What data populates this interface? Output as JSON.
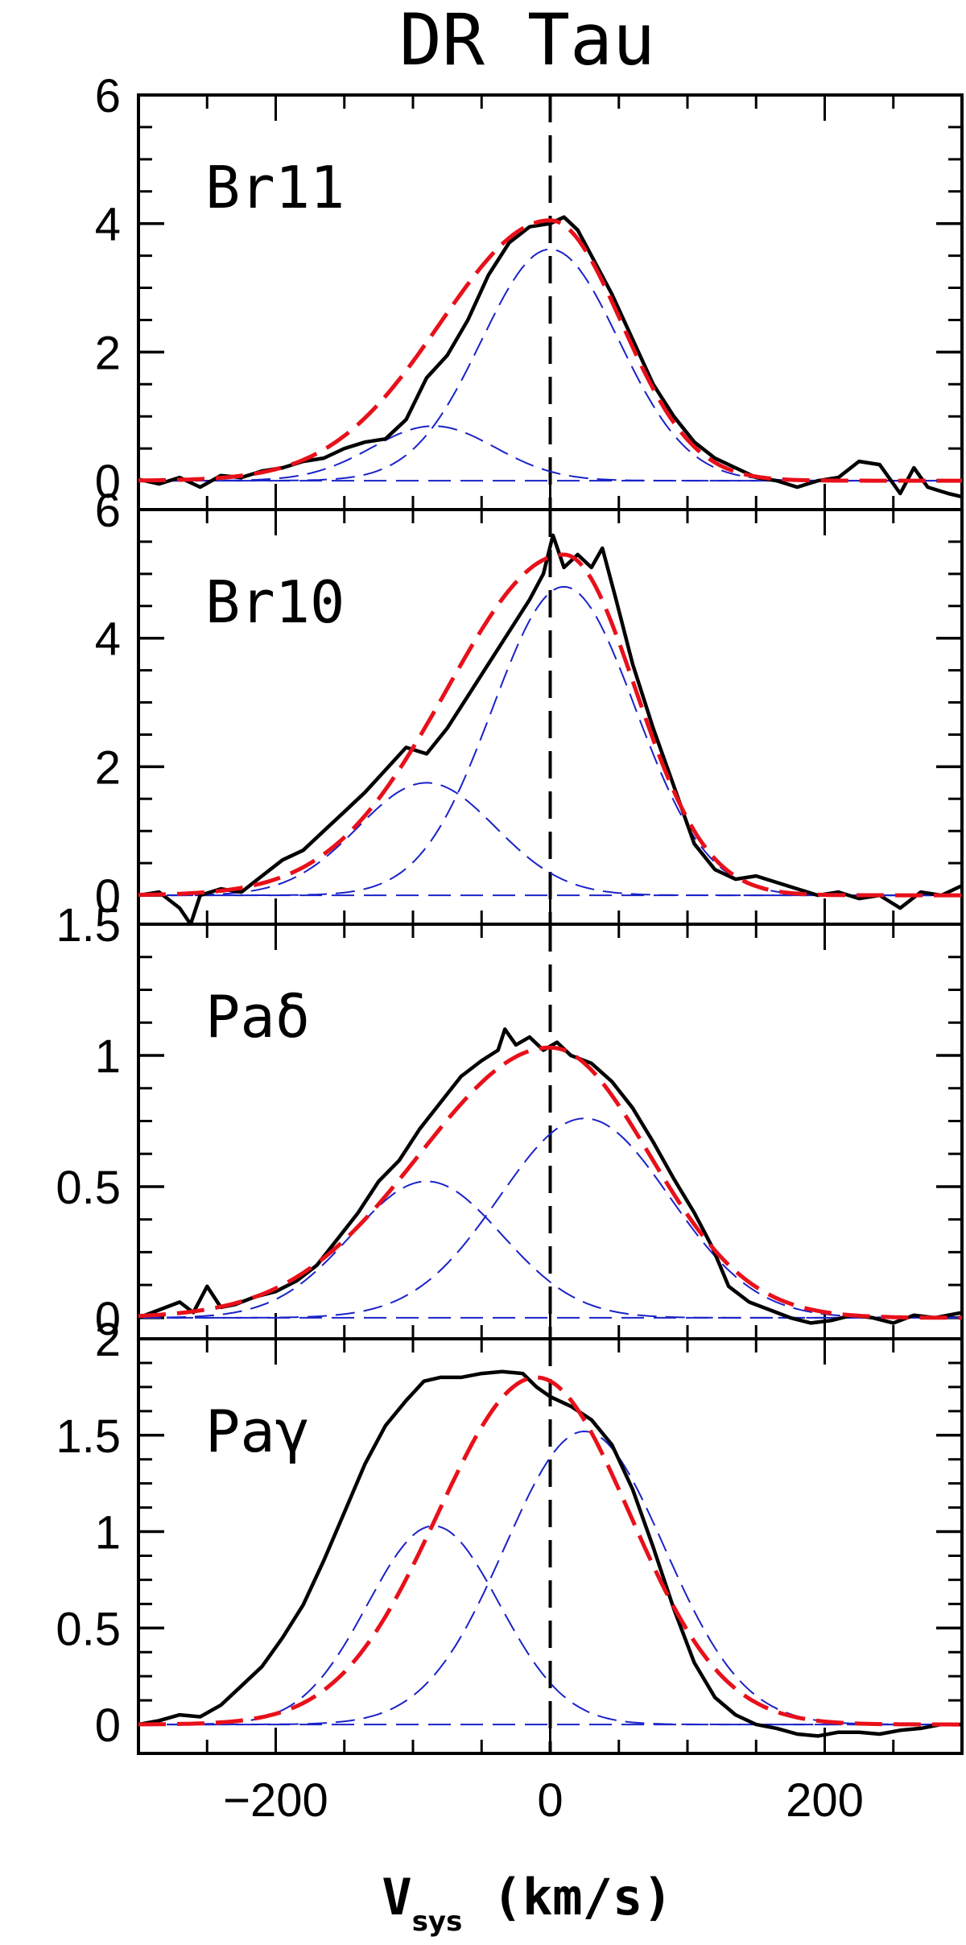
{
  "chart_data": {
    "type": "line",
    "title": "DR Tau",
    "xlabel": "V",
    "xlabel_sub": "sys",
    "xlabel_unit": " (km/s)",
    "xlim": [
      -300,
      300
    ],
    "x_ticks": [
      -200,
      0,
      200
    ],
    "x_tick_labels": [
      "−200",
      "0",
      "200"
    ],
    "vline_x": 0,
    "colors": {
      "observed": "#000000",
      "total_fit": "#e8101a",
      "components": "#1a22c8"
    },
    "panels": [
      {
        "label": "Br11",
        "ylim": [
          -0.45,
          6
        ],
        "y_ticks": [
          0,
          2,
          4,
          6
        ],
        "y_tick_labels": [
          "0",
          "2",
          "4",
          "6"
        ],
        "components": [
          {
            "center": -85,
            "amplitude": 0.85,
            "sigma": 45
          },
          {
            "center": 0,
            "amplitude": 3.6,
            "sigma": 50
          }
        ],
        "total_amplitude": 4.05,
        "total_center": 0,
        "total_sigma_left": 80,
        "total_sigma_right": 52,
        "observed": [
          [
            -300,
            0.02
          ],
          [
            -285,
            -0.05
          ],
          [
            -270,
            0.05
          ],
          [
            -255,
            -0.1
          ],
          [
            -240,
            0.08
          ],
          [
            -225,
            0.05
          ],
          [
            -210,
            0.15
          ],
          [
            -195,
            0.2
          ],
          [
            -180,
            0.3
          ],
          [
            -165,
            0.35
          ],
          [
            -150,
            0.5
          ],
          [
            -135,
            0.6
          ],
          [
            -120,
            0.65
          ],
          [
            -105,
            0.95
          ],
          [
            -90,
            1.6
          ],
          [
            -75,
            1.95
          ],
          [
            -60,
            2.5
          ],
          [
            -45,
            3.2
          ],
          [
            -30,
            3.7
          ],
          [
            -15,
            3.95
          ],
          [
            0,
            4.0
          ],
          [
            10,
            4.1
          ],
          [
            20,
            3.9
          ],
          [
            30,
            3.5
          ],
          [
            45,
            2.9
          ],
          [
            60,
            2.2
          ],
          [
            75,
            1.5
          ],
          [
            90,
            1.0
          ],
          [
            105,
            0.6
          ],
          [
            120,
            0.35
          ],
          [
            135,
            0.2
          ],
          [
            150,
            0.05
          ],
          [
            165,
            0.0
          ],
          [
            180,
            -0.1
          ],
          [
            195,
            0.0
          ],
          [
            210,
            0.05
          ],
          [
            225,
            0.3
          ],
          [
            240,
            0.25
          ],
          [
            255,
            -0.2
          ],
          [
            265,
            0.2
          ],
          [
            275,
            -0.1
          ],
          [
            290,
            -0.2
          ],
          [
            300,
            -0.25
          ]
        ]
      },
      {
        "label": "Br10",
        "ylim": [
          -0.45,
          6
        ],
        "y_ticks": [
          0,
          2,
          4,
          6
        ],
        "y_tick_labels": [
          "0",
          "2",
          "4",
          "6"
        ],
        "components": [
          {
            "center": -90,
            "amplitude": 1.75,
            "sigma": 50
          },
          {
            "center": 10,
            "amplitude": 4.8,
            "sigma": 52
          }
        ],
        "total_amplitude": 5.3,
        "total_center": 10,
        "total_sigma_left": 85,
        "total_sigma_right": 52,
        "observed": [
          [
            -300,
            0.0
          ],
          [
            -285,
            0.05
          ],
          [
            -270,
            -0.2
          ],
          [
            -262,
            -0.45
          ],
          [
            -255,
            0.0
          ],
          [
            -240,
            0.1
          ],
          [
            -225,
            0.05
          ],
          [
            -210,
            0.3
          ],
          [
            -195,
            0.55
          ],
          [
            -180,
            0.7
          ],
          [
            -165,
            1.0
          ],
          [
            -150,
            1.3
          ],
          [
            -135,
            1.6
          ],
          [
            -120,
            1.95
          ],
          [
            -105,
            2.3
          ],
          [
            -90,
            2.2
          ],
          [
            -75,
            2.6
          ],
          [
            -60,
            3.1
          ],
          [
            -45,
            3.6
          ],
          [
            -30,
            4.1
          ],
          [
            -15,
            4.6
          ],
          [
            -5,
            5.0
          ],
          [
            2,
            5.6
          ],
          [
            10,
            5.1
          ],
          [
            20,
            5.3
          ],
          [
            30,
            5.1
          ],
          [
            38,
            5.4
          ],
          [
            48,
            4.6
          ],
          [
            60,
            3.6
          ],
          [
            75,
            2.6
          ],
          [
            90,
            1.7
          ],
          [
            105,
            0.8
          ],
          [
            120,
            0.4
          ],
          [
            135,
            0.25
          ],
          [
            150,
            0.3
          ],
          [
            165,
            0.2
          ],
          [
            180,
            0.1
          ],
          [
            195,
            0.0
          ],
          [
            210,
            0.05
          ],
          [
            225,
            -0.05
          ],
          [
            240,
            0.0
          ],
          [
            255,
            -0.2
          ],
          [
            270,
            0.05
          ],
          [
            285,
            0.0
          ],
          [
            300,
            0.15
          ]
        ]
      },
      {
        "label": "Paδ",
        "ylim": [
          -0.08,
          1.5
        ],
        "y_ticks": [
          0,
          0.5,
          1,
          1.5
        ],
        "y_tick_labels": [
          "0",
          "0.5",
          "1",
          "1.5"
        ],
        "components": [
          {
            "center": -90,
            "amplitude": 0.52,
            "sigma": 55
          },
          {
            "center": 25,
            "amplitude": 0.76,
            "sigma": 62
          }
        ],
        "total_amplitude": 1.03,
        "total_center": 0,
        "total_sigma_left": 95,
        "total_sigma_right": 72,
        "observed": [
          [
            -300,
            0.0
          ],
          [
            -285,
            0.03
          ],
          [
            -270,
            0.06
          ],
          [
            -260,
            0.02
          ],
          [
            -250,
            0.12
          ],
          [
            -240,
            0.04
          ],
          [
            -230,
            0.05
          ],
          [
            -215,
            0.08
          ],
          [
            -200,
            0.1
          ],
          [
            -185,
            0.14
          ],
          [
            -170,
            0.2
          ],
          [
            -155,
            0.3
          ],
          [
            -140,
            0.4
          ],
          [
            -125,
            0.52
          ],
          [
            -110,
            0.6
          ],
          [
            -95,
            0.72
          ],
          [
            -80,
            0.82
          ],
          [
            -65,
            0.92
          ],
          [
            -50,
            0.98
          ],
          [
            -38,
            1.02
          ],
          [
            -33,
            1.1
          ],
          [
            -25,
            1.04
          ],
          [
            -15,
            1.07
          ],
          [
            -5,
            1.02
          ],
          [
            5,
            1.05
          ],
          [
            15,
            1.0
          ],
          [
            30,
            0.97
          ],
          [
            45,
            0.9
          ],
          [
            60,
            0.8
          ],
          [
            75,
            0.67
          ],
          [
            90,
            0.53
          ],
          [
            105,
            0.4
          ],
          [
            118,
            0.27
          ],
          [
            130,
            0.12
          ],
          [
            145,
            0.06
          ],
          [
            160,
            0.03
          ],
          [
            175,
            0.0
          ],
          [
            190,
            -0.02
          ],
          [
            205,
            -0.01
          ],
          [
            220,
            0.01
          ],
          [
            235,
            0.0
          ],
          [
            250,
            -0.02
          ],
          [
            265,
            0.01
          ],
          [
            280,
            0.0
          ],
          [
            300,
            0.02
          ]
        ]
      },
      {
        "label": "Paγ",
        "ylim": [
          -0.15,
          2
        ],
        "y_ticks": [
          0,
          0.5,
          1,
          1.5,
          2
        ],
        "y_tick_labels": [
          "0",
          "0.5",
          "1",
          "1.5",
          "2"
        ],
        "components": [
          {
            "center": -85,
            "amplitude": 1.03,
            "sigma": 48
          },
          {
            "center": 25,
            "amplitude": 1.52,
            "sigma": 58
          }
        ],
        "total_amplitude": 1.8,
        "total_center": -10,
        "total_sigma_left": 72,
        "total_sigma_right": 68,
        "observed": [
          [
            -300,
            0.0
          ],
          [
            -285,
            0.02
          ],
          [
            -270,
            0.05
          ],
          [
            -255,
            0.04
          ],
          [
            -240,
            0.1
          ],
          [
            -225,
            0.2
          ],
          [
            -210,
            0.3
          ],
          [
            -195,
            0.45
          ],
          [
            -180,
            0.62
          ],
          [
            -165,
            0.85
          ],
          [
            -150,
            1.1
          ],
          [
            -135,
            1.35
          ],
          [
            -120,
            1.55
          ],
          [
            -105,
            1.68
          ],
          [
            -92,
            1.78
          ],
          [
            -80,
            1.8
          ],
          [
            -65,
            1.8
          ],
          [
            -50,
            1.82
          ],
          [
            -35,
            1.83
          ],
          [
            -20,
            1.82
          ],
          [
            -10,
            1.75
          ],
          [
            0,
            1.7
          ],
          [
            15,
            1.65
          ],
          [
            30,
            1.58
          ],
          [
            45,
            1.45
          ],
          [
            60,
            1.22
          ],
          [
            75,
            0.92
          ],
          [
            90,
            0.6
          ],
          [
            105,
            0.32
          ],
          [
            120,
            0.14
          ],
          [
            135,
            0.05
          ],
          [
            150,
            0.0
          ],
          [
            165,
            -0.02
          ],
          [
            180,
            -0.05
          ],
          [
            195,
            -0.06
          ],
          [
            210,
            -0.04
          ],
          [
            225,
            -0.04
          ],
          [
            240,
            -0.05
          ],
          [
            255,
            -0.03
          ],
          [
            270,
            -0.02
          ],
          [
            285,
            0.0
          ],
          [
            300,
            0.0
          ]
        ]
      }
    ]
  }
}
